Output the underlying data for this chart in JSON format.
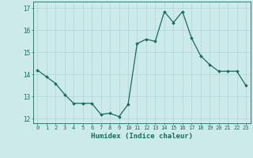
{
  "x": [
    0,
    1,
    2,
    3,
    4,
    5,
    6,
    7,
    8,
    9,
    10,
    11,
    12,
    13,
    14,
    15,
    16,
    17,
    18,
    19,
    20,
    21,
    22,
    23
  ],
  "y": [
    14.2,
    13.9,
    13.6,
    13.1,
    12.7,
    12.7,
    12.7,
    12.2,
    12.25,
    12.1,
    12.65,
    15.4,
    15.6,
    15.5,
    16.85,
    16.35,
    16.85,
    15.65,
    14.85,
    14.45,
    14.15,
    14.15,
    14.15,
    13.5
  ],
  "line_color": "#1a6b5a",
  "marker": "D",
  "markersize": 1.8,
  "linewidth": 0.9,
  "bg_color": "#cdeaea",
  "grid_color": "#afd4d4",
  "xlabel": "Humidex (Indice chaleur)",
  "xlim": [
    -0.5,
    23.5
  ],
  "ylim": [
    11.8,
    17.3
  ],
  "yticks": [
    12,
    13,
    14,
    15,
    16,
    17
  ],
  "xticks": [
    0,
    1,
    2,
    3,
    4,
    5,
    6,
    7,
    8,
    9,
    10,
    11,
    12,
    13,
    14,
    15,
    16,
    17,
    18,
    19,
    20,
    21,
    22,
    23
  ]
}
